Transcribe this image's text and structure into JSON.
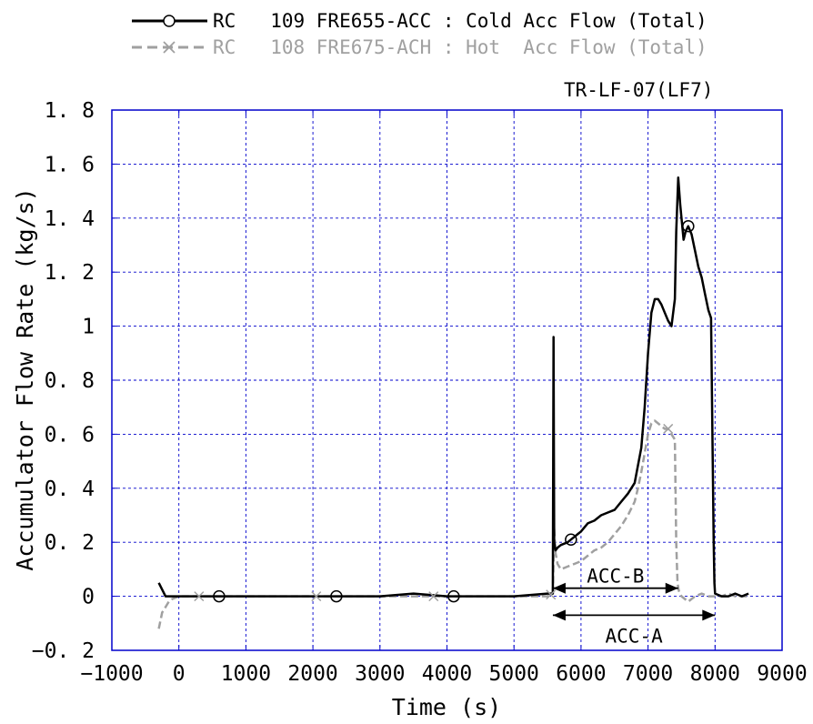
{
  "chart_data": {
    "type": "line",
    "title": "TR-LF-07(LF7)",
    "xlabel": "Time (s)",
    "ylabel": "Accumulator Flow Rate (kg/s)",
    "xlim": [
      -1000,
      9000
    ],
    "ylim": [
      -0.2,
      1.8
    ],
    "x_ticks": [
      -1000,
      0,
      1000,
      2000,
      3000,
      4000,
      5000,
      6000,
      7000,
      8000,
      9000
    ],
    "y_ticks": [
      -0.2,
      0,
      0.2,
      0.4,
      0.6,
      0.8,
      1,
      1.2,
      1.4,
      1.6,
      1.8
    ],
    "x_tick_labels": [
      "−1000",
      "0",
      "1000",
      "2000",
      "3000",
      "4000",
      "5000",
      "6000",
      "7000",
      "8000",
      "9000"
    ],
    "y_tick_labels": [
      "−0. 2",
      "0",
      "0. 2",
      "0. 4",
      "0. 6",
      "0. 8",
      "1",
      "1. 2",
      "1. 4",
      "1. 6",
      "1. 8"
    ],
    "grid": true,
    "legend_position": "above plot",
    "series": [
      {
        "name": "RC 109 FRE655-ACC : Cold Acc Flow (Total)",
        "legend_label": "RC   109 FRE655-ACC : Cold Acc Flow (Total)",
        "color": "#000000",
        "style": "solid",
        "marker": "circle",
        "x": [
          -300,
          -200,
          0,
          500,
          1000,
          1500,
          2000,
          2500,
          3000,
          3500,
          4000,
          4500,
          5000,
          5500,
          5580,
          5590,
          5600,
          5620,
          5650,
          5700,
          5800,
          5900,
          6000,
          6100,
          6200,
          6300,
          6400,
          6500,
          6600,
          6700,
          6800,
          6900,
          6950,
          7000,
          7050,
          7100,
          7150,
          7200,
          7250,
          7300,
          7350,
          7400,
          7420,
          7450,
          7480,
          7500,
          7530,
          7560,
          7600,
          7650,
          7700,
          7750,
          7800,
          7850,
          7900,
          7940,
          7960,
          7980,
          7990,
          8000,
          8100,
          8200,
          8300,
          8400,
          8500
        ],
        "y": [
          0.05,
          0.0,
          0.0,
          0.0,
          0.0,
          0.0,
          0.0,
          0.0,
          0.0,
          0.01,
          0.0,
          0.0,
          0.0,
          0.01,
          0.01,
          0.96,
          0.2,
          0.17,
          0.18,
          0.19,
          0.2,
          0.22,
          0.24,
          0.27,
          0.28,
          0.3,
          0.31,
          0.32,
          0.35,
          0.38,
          0.42,
          0.55,
          0.7,
          0.9,
          1.05,
          1.1,
          1.1,
          1.08,
          1.05,
          1.02,
          1.0,
          1.1,
          1.35,
          1.55,
          1.45,
          1.4,
          1.32,
          1.35,
          1.37,
          1.34,
          1.28,
          1.22,
          1.18,
          1.12,
          1.06,
          1.03,
          0.6,
          0.2,
          0.05,
          0.01,
          0.0,
          0.0,
          0.01,
          0.0,
          0.01
        ]
      },
      {
        "name": "RC 108 FRE675-ACH : Hot Acc Flow (Total)",
        "legend_label": "RC   108 FRE675-ACH : Hot  Acc Flow (Total)",
        "color": "#a0a0a0",
        "style": "dashed",
        "marker": "x",
        "x": [
          -300,
          -250,
          -200,
          -150,
          -100,
          0,
          500,
          1000,
          1500,
          2000,
          2500,
          3000,
          3500,
          4000,
          4500,
          5000,
          5500,
          5580,
          5600,
          5620,
          5650,
          5700,
          5800,
          5900,
          6000,
          6100,
          6200,
          6300,
          6400,
          6500,
          6600,
          6700,
          6800,
          6850,
          6900,
          6950,
          7000,
          7050,
          7100,
          7150,
          7200,
          7250,
          7300,
          7350,
          7400,
          7420,
          7440,
          7460,
          7480,
          7500,
          7600,
          7700,
          7800,
          7900,
          8000,
          8100,
          8200,
          8300,
          8400,
          8500
        ],
        "y": [
          -0.12,
          -0.06,
          -0.04,
          -0.02,
          -0.01,
          0.0,
          0.0,
          0.0,
          0.0,
          0.0,
          0.0,
          0.0,
          0.0,
          0.0,
          0.0,
          0.0,
          0.0,
          0.01,
          0.25,
          0.16,
          0.12,
          0.1,
          0.11,
          0.12,
          0.13,
          0.15,
          0.17,
          0.18,
          0.2,
          0.23,
          0.26,
          0.3,
          0.35,
          0.4,
          0.46,
          0.53,
          0.6,
          0.64,
          0.65,
          0.64,
          0.63,
          0.62,
          0.62,
          0.6,
          0.58,
          0.2,
          0.05,
          0.02,
          0.01,
          0.0,
          -0.02,
          0.0,
          0.01,
          0.0,
          0.0,
          0.0,
          0.01,
          0.0,
          0.0,
          0.0
        ]
      }
    ],
    "annotations": [
      {
        "label": "ACC-B",
        "x_start": 5580,
        "x_end": 7450,
        "y": 0.03
      },
      {
        "label": "ACC-A",
        "x_start": 5580,
        "x_end": 8000,
        "y": -0.07
      }
    ]
  }
}
